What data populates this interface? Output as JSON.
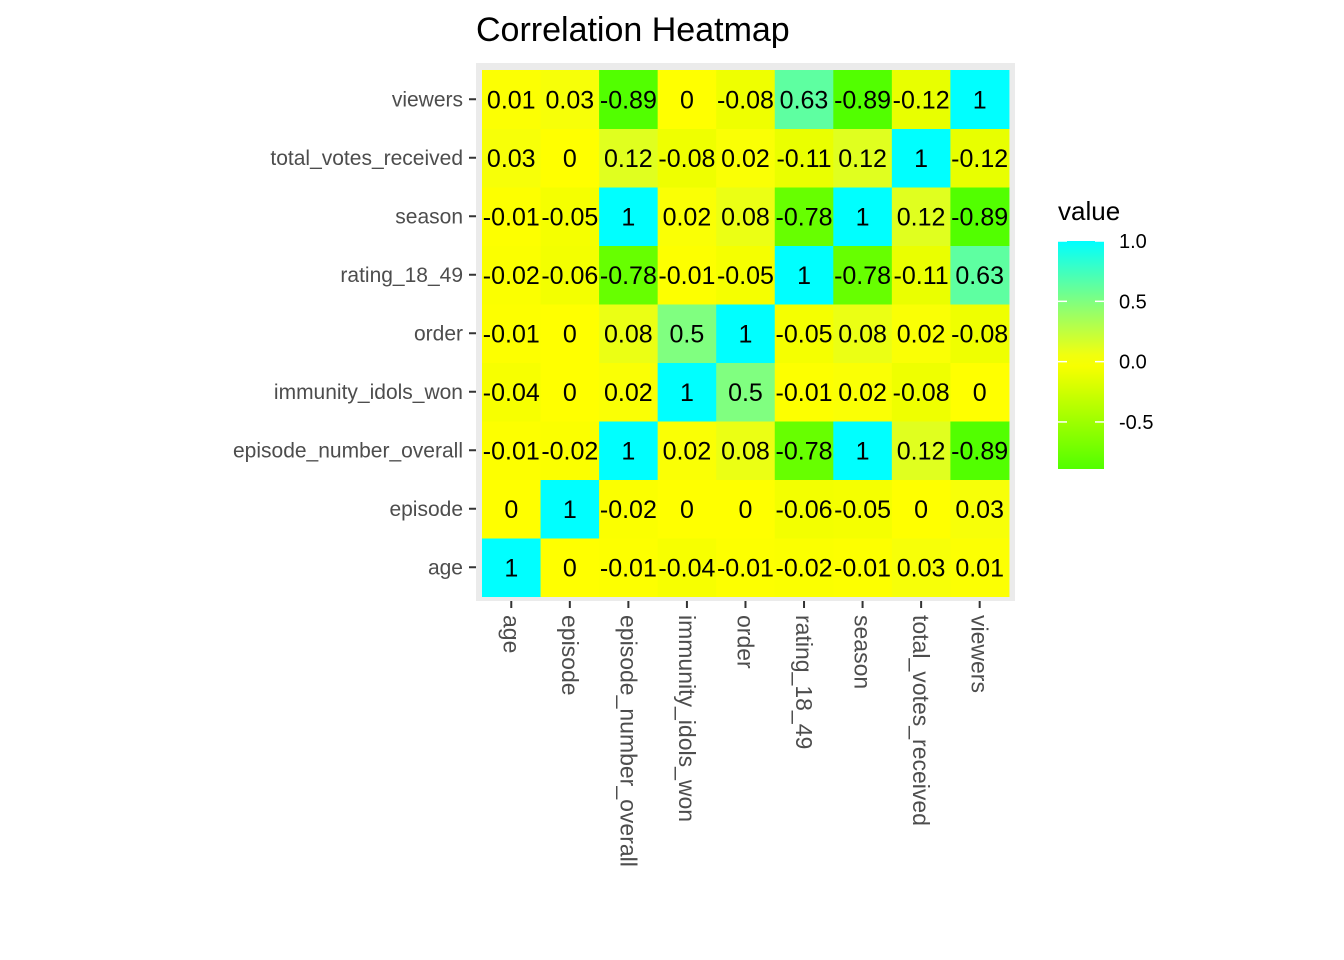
{
  "chart_data": {
    "type": "heatmap",
    "title": "Correlation Heatmap",
    "xlabel": "",
    "ylabel": "",
    "x_categories": [
      "age",
      "episode",
      "episode_number_overall",
      "immunity_idols_won",
      "order",
      "rating_18_49",
      "season",
      "total_votes_received",
      "viewers"
    ],
    "y_categories": [
      "age",
      "episode",
      "episode_number_overall",
      "immunity_idols_won",
      "order",
      "rating_18_49",
      "season",
      "total_votes_received",
      "viewers"
    ],
    "matrix": [
      [
        1,
        0,
        -0.01,
        -0.04,
        -0.01,
        -0.02,
        -0.01,
        0.03,
        0.01
      ],
      [
        0,
        1,
        -0.02,
        0,
        0,
        -0.06,
        -0.05,
        0,
        0.03
      ],
      [
        -0.01,
        -0.02,
        1,
        0.02,
        0.08,
        -0.78,
        1,
        0.12,
        -0.89
      ],
      [
        -0.04,
        0,
        0.02,
        1,
        0.5,
        -0.01,
        0.02,
        -0.08,
        0
      ],
      [
        -0.01,
        0,
        0.08,
        0.5,
        1,
        -0.05,
        0.08,
        0.02,
        -0.08
      ],
      [
        -0.02,
        -0.06,
        -0.78,
        -0.01,
        -0.05,
        1,
        -0.78,
        -0.11,
        0.63
      ],
      [
        -0.01,
        -0.05,
        1,
        0.02,
        0.08,
        -0.78,
        1,
        0.12,
        -0.89
      ],
      [
        0.03,
        0,
        0.12,
        -0.08,
        0.02,
        -0.11,
        0.12,
        1,
        -0.12
      ],
      [
        0.01,
        0.03,
        -0.89,
        0,
        -0.08,
        0.63,
        -0.89,
        -0.12,
        1
      ]
    ],
    "color_scale": {
      "low": "#52ff00",
      "mid": "#ffff00",
      "high": "#00ffff",
      "midpoint": 0,
      "min": -0.89,
      "max": 1
    },
    "legend": {
      "title": "value",
      "ticks": [
        1.0,
        0.5,
        0.0,
        -0.5
      ],
      "tick_labels": [
        "1.0",
        "0.5",
        "0.0",
        "-0.5"
      ],
      "placement": "right"
    },
    "panel_background": "#ebebeb",
    "grid": true
  }
}
